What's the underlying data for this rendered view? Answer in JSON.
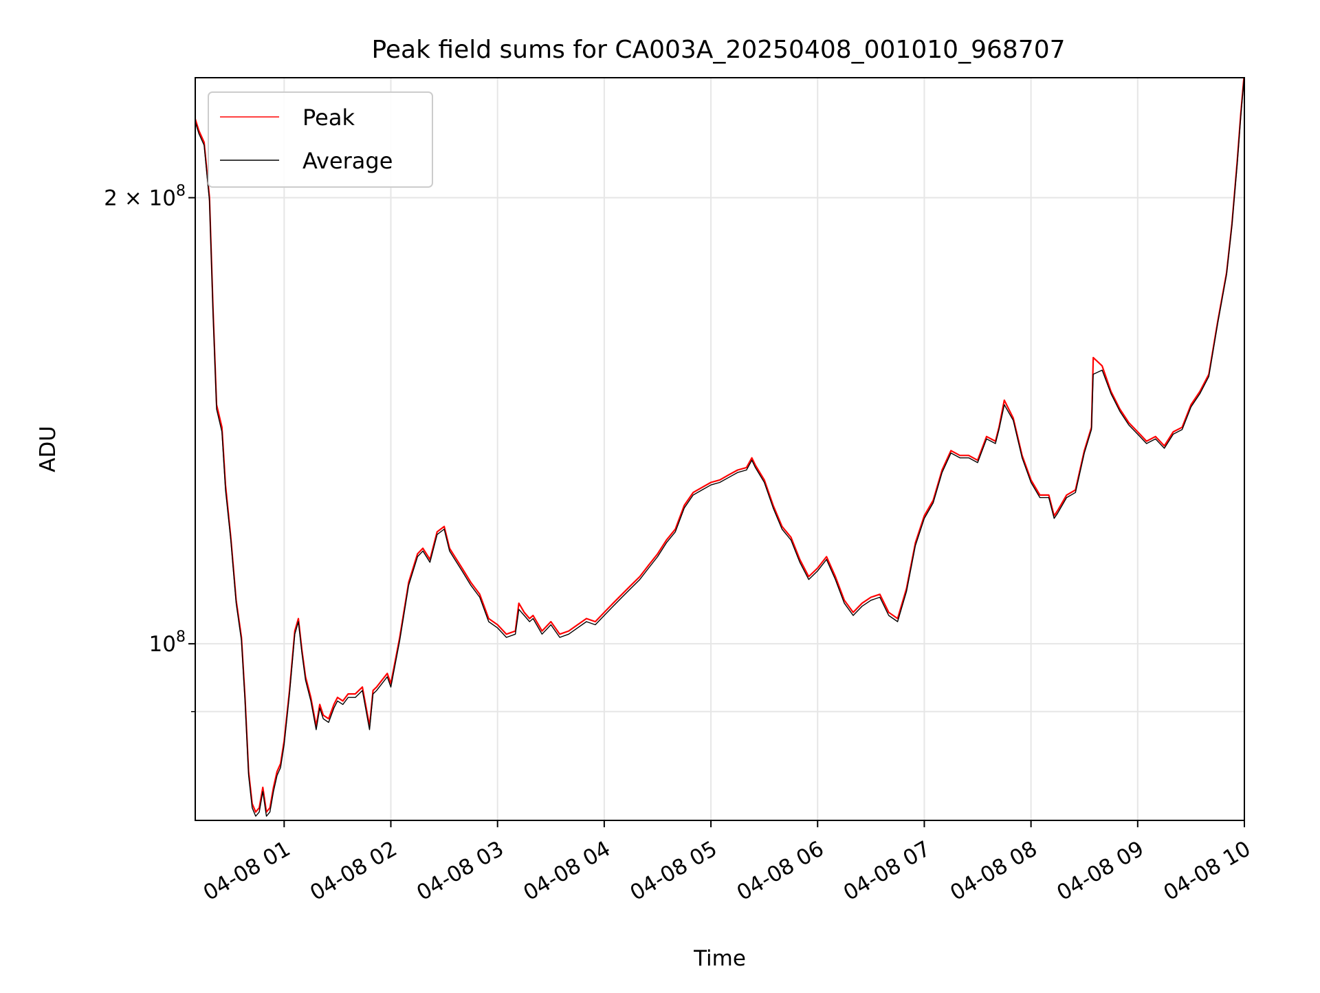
{
  "chart_data": {
    "type": "line",
    "title": "Peak field sums for CA003A_20250408_001010_968707",
    "xlabel": "Time",
    "ylabel": "ADU",
    "y_scale": "log",
    "ylim": [
      76000000,
      241000000
    ],
    "xlim": [
      "2025-04-08 00:10",
      "2025-04-08 10:00"
    ],
    "grid": true,
    "legend": "top-left",
    "x_ticks": [
      "04-08 01",
      "04-08 02",
      "04-08 03",
      "04-08 04",
      "04-08 05",
      "04-08 06",
      "04-08 07",
      "04-08 08",
      "04-08 09",
      "04-08 10"
    ],
    "y_tick_labels": {
      "2e8": "2 × 10",
      "1e8": "10",
      "exponent": "8"
    },
    "series": [
      {
        "name": "Peak",
        "color": "#ff0000",
        "x": [
          "2025-04-08 00:10",
          "2025-04-08 00:12",
          "2025-04-08 00:15",
          "2025-04-08 00:18",
          "2025-04-08 00:20",
          "2025-04-08 00:22",
          "2025-04-08 00:25",
          "2025-04-08 00:27",
          "2025-04-08 00:30",
          "2025-04-08 00:33",
          "2025-04-08 00:36",
          "2025-04-08 00:38",
          "2025-04-08 00:40",
          "2025-04-08 00:42",
          "2025-04-08 00:44",
          "2025-04-08 00:46",
          "2025-04-08 00:48",
          "2025-04-08 00:50",
          "2025-04-08 00:52",
          "2025-04-08 00:54",
          "2025-04-08 00:56",
          "2025-04-08 00:58",
          "2025-04-08 01:00",
          "2025-04-08 01:03",
          "2025-04-08 01:06",
          "2025-04-08 01:08",
          "2025-04-08 01:10",
          "2025-04-08 01:12",
          "2025-04-08 01:15",
          "2025-04-08 01:18",
          "2025-04-08 01:20",
          "2025-04-08 01:22",
          "2025-04-08 01:25",
          "2025-04-08 01:28",
          "2025-04-08 01:30",
          "2025-04-08 01:33",
          "2025-04-08 01:36",
          "2025-04-08 01:40",
          "2025-04-08 01:44",
          "2025-04-08 01:48",
          "2025-04-08 01:50",
          "2025-04-08 01:52",
          "2025-04-08 01:55",
          "2025-04-08 01:58",
          "2025-04-08 02:00",
          "2025-04-08 02:05",
          "2025-04-08 02:10",
          "2025-04-08 02:15",
          "2025-04-08 02:18",
          "2025-04-08 02:22",
          "2025-04-08 02:26",
          "2025-04-08 02:30",
          "2025-04-08 02:33",
          "2025-04-08 02:35",
          "2025-04-08 02:40",
          "2025-04-08 02:45",
          "2025-04-08 02:50",
          "2025-04-08 02:55",
          "2025-04-08 03:00",
          "2025-04-08 03:05",
          "2025-04-08 03:10",
          "2025-04-08 03:12",
          "2025-04-08 03:15",
          "2025-04-08 03:18",
          "2025-04-08 03:20",
          "2025-04-08 03:25",
          "2025-04-08 03:30",
          "2025-04-08 03:35",
          "2025-04-08 03:40",
          "2025-04-08 03:45",
          "2025-04-08 03:50",
          "2025-04-08 03:55",
          "2025-04-08 04:00",
          "2025-04-08 04:05",
          "2025-04-08 04:10",
          "2025-04-08 04:15",
          "2025-04-08 04:20",
          "2025-04-08 04:25",
          "2025-04-08 04:30",
          "2025-04-08 04:35",
          "2025-04-08 04:40",
          "2025-04-08 04:45",
          "2025-04-08 04:50",
          "2025-04-08 04:55",
          "2025-04-08 05:00",
          "2025-04-08 05:05",
          "2025-04-08 05:10",
          "2025-04-08 05:15",
          "2025-04-08 05:20",
          "2025-04-08 05:23",
          "2025-04-08 05:25",
          "2025-04-08 05:30",
          "2025-04-08 05:35",
          "2025-04-08 05:40",
          "2025-04-08 05:45",
          "2025-04-08 05:50",
          "2025-04-08 05:55",
          "2025-04-08 06:00",
          "2025-04-08 06:05",
          "2025-04-08 06:10",
          "2025-04-08 06:15",
          "2025-04-08 06:20",
          "2025-04-08 06:25",
          "2025-04-08 06:30",
          "2025-04-08 06:35",
          "2025-04-08 06:40",
          "2025-04-08 06:45",
          "2025-04-08 06:50",
          "2025-04-08 06:55",
          "2025-04-08 07:00",
          "2025-04-08 07:05",
          "2025-04-08 07:10",
          "2025-04-08 07:15",
          "2025-04-08 07:20",
          "2025-04-08 07:25",
          "2025-04-08 07:30",
          "2025-04-08 07:35",
          "2025-04-08 07:40",
          "2025-04-08 07:42",
          "2025-04-08 07:45",
          "2025-04-08 07:50",
          "2025-04-08 07:55",
          "2025-04-08 08:00",
          "2025-04-08 08:05",
          "2025-04-08 08:10",
          "2025-04-08 08:13",
          "2025-04-08 08:15",
          "2025-04-08 08:20",
          "2025-04-08 08:25",
          "2025-04-08 08:30",
          "2025-04-08 08:34",
          "2025-04-08 08:35",
          "2025-04-08 08:40",
          "2025-04-08 08:45",
          "2025-04-08 08:50",
          "2025-04-08 08:55",
          "2025-04-08 09:00",
          "2025-04-08 09:05",
          "2025-04-08 09:10",
          "2025-04-08 09:15",
          "2025-04-08 09:20",
          "2025-04-08 09:25",
          "2025-04-08 09:30",
          "2025-04-08 09:35",
          "2025-04-08 09:40",
          "2025-04-08 09:45",
          "2025-04-08 09:50",
          "2025-04-08 09:53",
          "2025-04-08 09:56",
          "2025-04-08 09:58",
          "2025-04-08 10:00"
        ],
        "values": [
          226000000,
          222000000,
          218000000,
          200000000,
          168000000,
          145000000,
          140000000,
          128000000,
          118000000,
          107000000,
          101000000,
          92000000,
          82000000,
          78000000,
          77000000,
          77500000,
          80000000,
          77000000,
          77500000,
          80000000,
          82000000,
          83000000,
          86000000,
          93000000,
          102000000,
          104000000,
          99000000,
          95000000,
          92000000,
          88000000,
          91000000,
          89500000,
          89000000,
          91000000,
          92000000,
          91500000,
          92500000,
          92500000,
          93500000,
          88000000,
          93000000,
          93500000,
          94500000,
          95500000,
          94000000,
          101000000,
          110000000,
          115000000,
          116000000,
          114000000,
          119000000,
          120000000,
          116000000,
          115000000,
          112500000,
          110000000,
          108000000,
          104000000,
          103000000,
          101500000,
          102000000,
          106500000,
          105000000,
          104000000,
          104500000,
          102000000,
          103500000,
          101500000,
          102000000,
          103000000,
          104000000,
          103500000,
          105000000,
          106500000,
          108000000,
          109500000,
          111000000,
          113000000,
          115000000,
          117500000,
          119500000,
          124000000,
          126500000,
          127500000,
          128500000,
          129000000,
          130000000,
          131000000,
          131500000,
          133500000,
          132000000,
          129000000,
          124000000,
          120000000,
          118000000,
          114000000,
          111000000,
          112500000,
          114500000,
          111000000,
          107000000,
          105000000,
          106500000,
          107500000,
          108000000,
          105000000,
          104000000,
          109000000,
          117000000,
          122000000,
          125000000,
          131000000,
          135000000,
          134000000,
          134000000,
          133000000,
          138000000,
          137000000,
          140000000,
          146000000,
          142000000,
          134000000,
          129000000,
          126000000,
          126000000,
          122000000,
          123000000,
          126000000,
          127000000,
          135000000,
          140000000,
          156000000,
          154000000,
          148000000,
          144000000,
          141000000,
          139000000,
          137000000,
          138000000,
          136000000,
          139000000,
          140000000,
          145000000,
          148000000,
          152000000,
          165000000,
          178000000,
          192000000,
          212000000,
          228000000,
          243000000
        ]
      },
      {
        "name": "Average",
        "color": "#000000",
        "x": [
          "2025-04-08 00:10",
          "2025-04-08 00:12",
          "2025-04-08 00:15",
          "2025-04-08 00:18",
          "2025-04-08 00:20",
          "2025-04-08 00:22",
          "2025-04-08 00:25",
          "2025-04-08 00:27",
          "2025-04-08 00:30",
          "2025-04-08 00:33",
          "2025-04-08 00:36",
          "2025-04-08 00:38",
          "2025-04-08 00:40",
          "2025-04-08 00:42",
          "2025-04-08 00:44",
          "2025-04-08 00:46",
          "2025-04-08 00:48",
          "2025-04-08 00:50",
          "2025-04-08 00:52",
          "2025-04-08 00:54",
          "2025-04-08 00:56",
          "2025-04-08 00:58",
          "2025-04-08 01:00",
          "2025-04-08 01:03",
          "2025-04-08 01:06",
          "2025-04-08 01:08",
          "2025-04-08 01:10",
          "2025-04-08 01:12",
          "2025-04-08 01:15",
          "2025-04-08 01:18",
          "2025-04-08 01:20",
          "2025-04-08 01:22",
          "2025-04-08 01:25",
          "2025-04-08 01:28",
          "2025-04-08 01:30",
          "2025-04-08 01:33",
          "2025-04-08 01:36",
          "2025-04-08 01:40",
          "2025-04-08 01:44",
          "2025-04-08 01:48",
          "2025-04-08 01:50",
          "2025-04-08 01:52",
          "2025-04-08 01:55",
          "2025-04-08 01:58",
          "2025-04-08 02:00",
          "2025-04-08 02:05",
          "2025-04-08 02:10",
          "2025-04-08 02:15",
          "2025-04-08 02:18",
          "2025-04-08 02:22",
          "2025-04-08 02:26",
          "2025-04-08 02:30",
          "2025-04-08 02:33",
          "2025-04-08 02:35",
          "2025-04-08 02:40",
          "2025-04-08 02:45",
          "2025-04-08 02:50",
          "2025-04-08 02:55",
          "2025-04-08 03:00",
          "2025-04-08 03:05",
          "2025-04-08 03:10",
          "2025-04-08 03:12",
          "2025-04-08 03:15",
          "2025-04-08 03:18",
          "2025-04-08 03:20",
          "2025-04-08 03:25",
          "2025-04-08 03:30",
          "2025-04-08 03:35",
          "2025-04-08 03:40",
          "2025-04-08 03:45",
          "2025-04-08 03:50",
          "2025-04-08 03:55",
          "2025-04-08 04:00",
          "2025-04-08 04:05",
          "2025-04-08 04:10",
          "2025-04-08 04:15",
          "2025-04-08 04:20",
          "2025-04-08 04:25",
          "2025-04-08 04:30",
          "2025-04-08 04:35",
          "2025-04-08 04:40",
          "2025-04-08 04:45",
          "2025-04-08 04:50",
          "2025-04-08 04:55",
          "2025-04-08 05:00",
          "2025-04-08 05:05",
          "2025-04-08 05:10",
          "2025-04-08 05:15",
          "2025-04-08 05:20",
          "2025-04-08 05:23",
          "2025-04-08 05:25",
          "2025-04-08 05:30",
          "2025-04-08 05:35",
          "2025-04-08 05:40",
          "2025-04-08 05:45",
          "2025-04-08 05:50",
          "2025-04-08 05:55",
          "2025-04-08 06:00",
          "2025-04-08 06:05",
          "2025-04-08 06:10",
          "2025-04-08 06:15",
          "2025-04-08 06:20",
          "2025-04-08 06:25",
          "2025-04-08 06:30",
          "2025-04-08 06:35",
          "2025-04-08 06:40",
          "2025-04-08 06:45",
          "2025-04-08 06:50",
          "2025-04-08 06:55",
          "2025-04-08 07:00",
          "2025-04-08 07:05",
          "2025-04-08 07:10",
          "2025-04-08 07:15",
          "2025-04-08 07:20",
          "2025-04-08 07:25",
          "2025-04-08 07:30",
          "2025-04-08 07:35",
          "2025-04-08 07:40",
          "2025-04-08 07:42",
          "2025-04-08 07:45",
          "2025-04-08 07:50",
          "2025-04-08 07:55",
          "2025-04-08 08:00",
          "2025-04-08 08:05",
          "2025-04-08 08:10",
          "2025-04-08 08:13",
          "2025-04-08 08:15",
          "2025-04-08 08:20",
          "2025-04-08 08:25",
          "2025-04-08 08:30",
          "2025-04-08 08:34",
          "2025-04-08 08:35",
          "2025-04-08 08:40",
          "2025-04-08 08:45",
          "2025-04-08 08:50",
          "2025-04-08 08:55",
          "2025-04-08 09:00",
          "2025-04-08 09:05",
          "2025-04-08 09:10",
          "2025-04-08 09:15",
          "2025-04-08 09:20",
          "2025-04-08 09:25",
          "2025-04-08 09:30",
          "2025-04-08 09:35",
          "2025-04-08 09:40",
          "2025-04-08 09:45",
          "2025-04-08 09:50",
          "2025-04-08 09:53",
          "2025-04-08 09:56",
          "2025-04-08 09:58",
          "2025-04-08 10:00"
        ],
        "values": [
          225000000,
          221000000,
          217000000,
          199000000,
          167000000,
          144000000,
          139000000,
          127000000,
          117500000,
          106500000,
          100500000,
          91500000,
          81500000,
          77500000,
          76500000,
          77000000,
          79500000,
          76500000,
          77000000,
          79500000,
          81500000,
          82500000,
          85500000,
          92500000,
          101500000,
          103500000,
          98500000,
          94500000,
          91500000,
          87500000,
          90500000,
          89000000,
          88500000,
          90500000,
          91500000,
          91000000,
          92000000,
          92000000,
          93000000,
          87500000,
          92500000,
          93000000,
          94000000,
          95000000,
          93500000,
          100500000,
          109500000,
          114500000,
          115500000,
          113500000,
          118500000,
          119500000,
          115500000,
          114500000,
          112000000,
          109500000,
          107500000,
          103500000,
          102500000,
          101000000,
          101500000,
          105500000,
          104500000,
          103500000,
          104000000,
          101500000,
          103000000,
          101000000,
          101500000,
          102500000,
          103500000,
          103000000,
          104500000,
          106000000,
          107500000,
          109000000,
          110500000,
          112500000,
          114500000,
          117000000,
          119000000,
          123500000,
          126000000,
          127000000,
          128000000,
          128500000,
          129500000,
          130500000,
          131000000,
          133000000,
          131500000,
          128500000,
          123500000,
          119500000,
          117500000,
          113500000,
          110500000,
          112000000,
          114000000,
          110500000,
          106500000,
          104500000,
          106000000,
          107000000,
          107500000,
          104500000,
          103500000,
          108500000,
          116500000,
          121500000,
          124500000,
          130500000,
          134500000,
          133500000,
          133500000,
          132500000,
          137500000,
          136500000,
          139500000,
          145000000,
          141500000,
          133500000,
          128500000,
          125500000,
          125500000,
          121500000,
          122500000,
          125500000,
          126500000,
          134500000,
          139500000,
          152000000,
          153000000,
          147500000,
          143500000,
          140500000,
          138500000,
          136500000,
          137500000,
          135500000,
          138500000,
          139500000,
          144500000,
          147500000,
          151500000,
          164500000,
          177500000,
          191500000,
          211000000,
          227000000,
          242000000
        ]
      }
    ]
  }
}
